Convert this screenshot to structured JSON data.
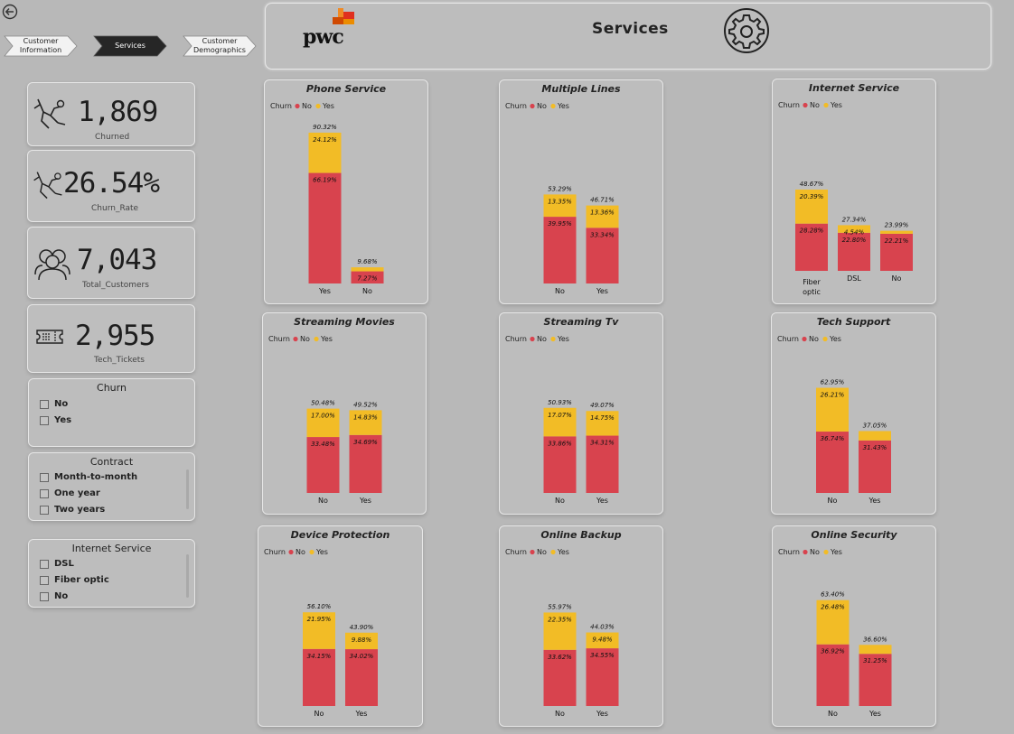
{
  "nav": {
    "tabs": [
      {
        "lines": [
          "Customer",
          "Information"
        ],
        "active": false
      },
      {
        "lines": [
          "Services"
        ],
        "active": true
      },
      {
        "lines": [
          "Customer",
          "Demographics"
        ],
        "active": false
      }
    ]
  },
  "header": {
    "title": "Services",
    "logo_text": "pwc"
  },
  "kpis": [
    {
      "value": "1,869",
      "label": "Churned",
      "icon": "person-falling-icon"
    },
    {
      "value": "26.54%",
      "label": "Churn_Rate",
      "icon": "person-falling-icon"
    },
    {
      "value": "7,043",
      "label": "Total_Customers",
      "icon": "customers-icon"
    },
    {
      "value": "2,955",
      "label": "Tech_Tickets",
      "icon": "ticket-icon"
    }
  ],
  "slicers": [
    {
      "title": "Churn",
      "items": [
        "No",
        "Yes"
      ]
    },
    {
      "title": "Contract",
      "items": [
        "Month-to-month",
        "One year",
        "Two years"
      ]
    },
    {
      "title": "Internet Service",
      "items": [
        "DSL",
        "Fiber optic",
        "No"
      ]
    }
  ],
  "colors": {
    "no": "#d8434e",
    "yes": "#f2bc26",
    "background": "#b8b8b8"
  },
  "legend": {
    "title": "Churn",
    "no": "No",
    "yes": "Yes"
  },
  "chart_data": [
    {
      "type": "bar",
      "stacked": true,
      "title": "Phone Service",
      "categories": [
        "Yes",
        "No"
      ],
      "series": [
        {
          "name": "No",
          "values": [
            66.19,
            7.27
          ]
        },
        {
          "name": "Yes",
          "values": [
            24.12,
            2.41
          ]
        }
      ],
      "value_labels": {
        "No": [
          "66.19%",
          "7.27%"
        ],
        "Yes": [
          "24.12%",
          ""
        ]
      },
      "totals": [
        "90.32%",
        "9.68%"
      ]
    },
    {
      "type": "bar",
      "stacked": true,
      "title": "Multiple Lines",
      "categories": [
        "No",
        "Yes"
      ],
      "series": [
        {
          "name": "No",
          "values": [
            39.95,
            33.34
          ]
        },
        {
          "name": "Yes",
          "values": [
            13.35,
            13.36
          ]
        }
      ],
      "value_labels": {
        "No": [
          "39.95%",
          "33.34%"
        ],
        "Yes": [
          "13.35%",
          "13.36%"
        ]
      },
      "totals": [
        "53.29%",
        "46.71%"
      ]
    },
    {
      "type": "bar",
      "stacked": true,
      "title": "Internet Service",
      "categories": [
        "Fiber optic",
        "DSL",
        "No"
      ],
      "series": [
        {
          "name": "No",
          "values": [
            28.28,
            22.8,
            22.21
          ]
        },
        {
          "name": "Yes",
          "values": [
            20.39,
            4.54,
            1.78
          ]
        }
      ],
      "value_labels": {
        "No": [
          "28.28%",
          "22.80%",
          "22.21%"
        ],
        "Yes": [
          "20.39%",
          "4.54%",
          ""
        ]
      },
      "totals": [
        "48.67%",
        "27.34%",
        "23.99%"
      ]
    },
    {
      "type": "bar",
      "stacked": true,
      "title": "Streaming Movies",
      "categories": [
        "No",
        "Yes"
      ],
      "series": [
        {
          "name": "No",
          "values": [
            33.48,
            34.69
          ]
        },
        {
          "name": "Yes",
          "values": [
            17.0,
            14.83
          ]
        }
      ],
      "value_labels": {
        "No": [
          "33.48%",
          "34.69%"
        ],
        "Yes": [
          "17.00%",
          "14.83%"
        ]
      },
      "totals": [
        "50.48%",
        "49.52%"
      ]
    },
    {
      "type": "bar",
      "stacked": true,
      "title": "Streaming Tv",
      "categories": [
        "No",
        "Yes"
      ],
      "series": [
        {
          "name": "No",
          "values": [
            33.86,
            34.31
          ]
        },
        {
          "name": "Yes",
          "values": [
            17.07,
            14.75
          ]
        }
      ],
      "value_labels": {
        "No": [
          "33.86%",
          "34.31%"
        ],
        "Yes": [
          "17.07%",
          "14.75%"
        ]
      },
      "totals": [
        "50.93%",
        "49.07%"
      ]
    },
    {
      "type": "bar",
      "stacked": true,
      "title": "Tech Support",
      "categories": [
        "No",
        "Yes"
      ],
      "series": [
        {
          "name": "No",
          "values": [
            36.74,
            31.43
          ]
        },
        {
          "name": "Yes",
          "values": [
            26.21,
            5.62
          ]
        }
      ],
      "value_labels": {
        "No": [
          "36.74%",
          "31.43%"
        ],
        "Yes": [
          "26.21%",
          ""
        ]
      },
      "totals": [
        "62.95%",
        "37.05%"
      ]
    },
    {
      "type": "bar",
      "stacked": true,
      "title": "Device Protection",
      "categories": [
        "No",
        "Yes"
      ],
      "series": [
        {
          "name": "No",
          "values": [
            34.15,
            34.02
          ]
        },
        {
          "name": "Yes",
          "values": [
            21.95,
            9.88
          ]
        }
      ],
      "value_labels": {
        "No": [
          "34.15%",
          "34.02%"
        ],
        "Yes": [
          "21.95%",
          "9.88%"
        ]
      },
      "totals": [
        "56.10%",
        "43.90%"
      ]
    },
    {
      "type": "bar",
      "stacked": true,
      "title": "Online Backup",
      "categories": [
        "No",
        "Yes"
      ],
      "series": [
        {
          "name": "No",
          "values": [
            33.62,
            34.55
          ]
        },
        {
          "name": "Yes",
          "values": [
            22.35,
            9.48
          ]
        }
      ],
      "value_labels": {
        "No": [
          "33.62%",
          "34.55%"
        ],
        "Yes": [
          "22.35%",
          "9.48%"
        ]
      },
      "totals": [
        "55.97%",
        "44.03%"
      ]
    },
    {
      "type": "bar",
      "stacked": true,
      "title": "Online Security",
      "categories": [
        "No",
        "Yes"
      ],
      "series": [
        {
          "name": "No",
          "values": [
            36.92,
            31.25
          ]
        },
        {
          "name": "Yes",
          "values": [
            26.48,
            5.35
          ]
        }
      ],
      "value_labels": {
        "No": [
          "36.92%",
          "31.25%"
        ],
        "Yes": [
          "26.48%",
          ""
        ]
      },
      "totals": [
        "63.40%",
        "36.60%"
      ]
    }
  ]
}
